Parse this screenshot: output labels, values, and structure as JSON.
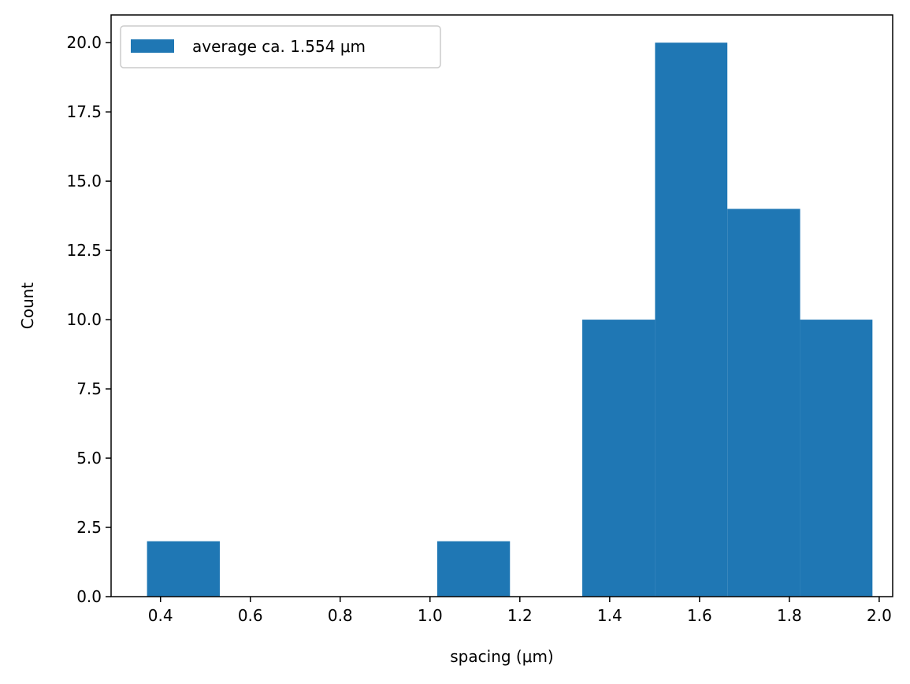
{
  "chart_data": {
    "type": "bar",
    "xlabel": "spacing (μm)",
    "ylabel": "Count",
    "xlim": [
      0.29,
      2.03
    ],
    "ylim": [
      0,
      21
    ],
    "x_ticks": [
      "0.4",
      "0.6",
      "0.8",
      "1.0",
      "1.2",
      "1.4",
      "1.6",
      "1.8",
      "2.0"
    ],
    "y_ticks": [
      "0.0",
      "2.5",
      "5.0",
      "7.5",
      "10.0",
      "12.5",
      "15.0",
      "17.5",
      "20.0"
    ],
    "bins": [
      {
        "x0": 0.37,
        "x1": 0.532,
        "count": 2
      },
      {
        "x0": 0.532,
        "x1": 0.693,
        "count": 0
      },
      {
        "x0": 0.693,
        "x1": 0.855,
        "count": 0
      },
      {
        "x0": 0.855,
        "x1": 1.016,
        "count": 0
      },
      {
        "x0": 1.016,
        "x1": 1.178,
        "count": 2
      },
      {
        "x0": 1.178,
        "x1": 1.339,
        "count": 0
      },
      {
        "x0": 1.339,
        "x1": 1.501,
        "count": 10
      },
      {
        "x0": 1.501,
        "x1": 1.662,
        "count": 20
      },
      {
        "x0": 1.662,
        "x1": 1.824,
        "count": 14
      },
      {
        "x0": 1.824,
        "x1": 1.985,
        "count": 10
      }
    ],
    "series": [
      {
        "name": "average ca. 1.554 μm"
      }
    ],
    "legend_position": "top-left",
    "grid": false,
    "colors": {
      "bar": "#1f77b4"
    }
  }
}
